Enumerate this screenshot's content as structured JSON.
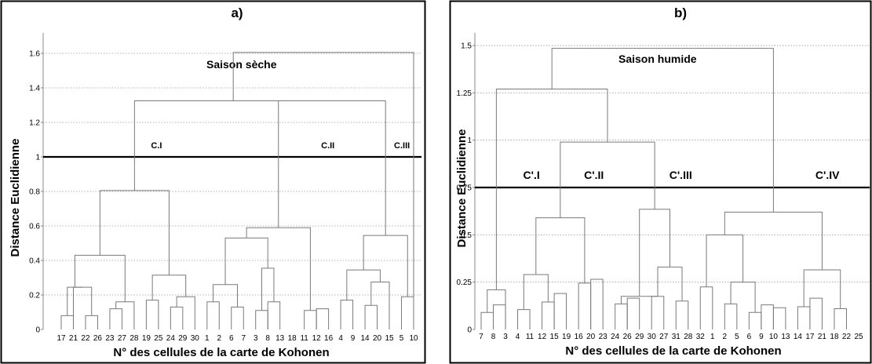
{
  "chart_data": [
    {
      "type": "dendrogram",
      "title": "a)",
      "annotation": "Saison sèche",
      "ylabel": "Distance Euclidienne",
      "xlabel": "N° des cellules de la carte de Kohonen",
      "ylim": [
        0,
        1.7
      ],
      "yticks": [
        "0",
        "0.2",
        "0.4",
        "0.6",
        "0.8",
        "1",
        "1.2",
        "1.4",
        "1.6"
      ],
      "grid": true,
      "threshold": 1.0,
      "leaves": [
        "17",
        "21",
        "22",
        "26",
        "23",
        "27",
        "28",
        "19",
        "25",
        "24",
        "29",
        "30",
        "1",
        "2",
        "6",
        "7",
        "3",
        "8",
        "13",
        "18",
        "11",
        "12",
        "16",
        "4",
        "9",
        "14",
        "20",
        "15",
        "5",
        "10"
      ],
      "cluster_labels": [
        {
          "text": "C.I",
          "leaf_index": 7
        },
        {
          "text": "C.II",
          "leaf_index": 21
        },
        {
          "text": "C.III",
          "leaf_index": 27
        }
      ],
      "merges": [
        [
          0,
          1,
          0.08
        ],
        [
          2,
          3,
          0.08
        ],
        [
          1,
          2,
          0.245
        ],
        [
          0,
          1,
          0.245
        ],
        [
          4,
          5,
          0.12
        ],
        [
          4,
          6,
          0.16
        ],
        [
          0,
          4,
          0.43
        ],
        [
          7,
          8,
          0.17
        ],
        [
          9,
          10,
          0.13
        ],
        [
          9,
          11,
          0.19
        ],
        [
          7,
          9,
          0.315
        ],
        [
          0,
          7,
          0.805
        ],
        [
          12,
          13,
          0.16
        ],
        [
          14,
          15,
          0.13
        ],
        [
          12,
          14,
          0.26
        ],
        [
          16,
          17,
          0.11
        ],
        [
          17,
          18,
          0.16
        ],
        [
          16,
          17,
          0.355
        ],
        [
          12,
          16,
          0.53
        ],
        [
          20,
          21,
          0.11
        ],
        [
          21,
          22,
          0.12
        ],
        [
          12,
          20,
          0.59
        ],
        [
          23,
          24,
          0.17
        ],
        [
          25,
          26,
          0.14
        ],
        [
          25,
          27,
          0.275
        ],
        [
          23,
          25,
          0.345
        ],
        [
          28,
          29,
          0.19
        ],
        [
          23,
          28,
          0.545
        ],
        [
          12,
          23,
          1.325
        ],
        [
          0,
          12,
          1.325
        ],
        [
          0,
          29,
          1.605
        ]
      ]
    },
    {
      "type": "dendrogram",
      "title": "b)",
      "annotation": "Saison humide",
      "ylabel": "Distance Euclidienne",
      "xlabel": "N° des cellules de la carte de Kohonen",
      "ylim": [
        0,
        1.55
      ],
      "yticks": [
        "0",
        "0.25",
        "0.5",
        "0.75",
        "1",
        "1.25",
        "1.5"
      ],
      "grid": true,
      "threshold": 0.75,
      "leaves": [
        "7",
        "8",
        "3",
        "4",
        "11",
        "12",
        "15",
        "19",
        "16",
        "20",
        "23",
        "24",
        "26",
        "29",
        "30",
        "27",
        "31",
        "28",
        "32",
        "1",
        "2",
        "5",
        "6",
        "9",
        "10",
        "13",
        "14",
        "17",
        "21",
        "18",
        "22",
        "25"
      ],
      "cluster_labels": [
        {
          "text": "C'.I",
          "leaf_index": 3
        },
        {
          "text": "C'.II",
          "leaf_index": 8
        },
        {
          "text": "C'.III",
          "leaf_index": 15
        },
        {
          "text": "C'.IV",
          "leaf_index": 27
        }
      ],
      "merges": [
        [
          0,
          1,
          0.09
        ],
        [
          1,
          2,
          0.13
        ],
        [
          0,
          2,
          0.21
        ],
        [
          3,
          4,
          0.105
        ],
        [
          5,
          6,
          0.145
        ],
        [
          6,
          7,
          0.19
        ],
        [
          3,
          5,
          0.29
        ],
        [
          8,
          9,
          0.245
        ],
        [
          9,
          10,
          0.265
        ],
        [
          3,
          8,
          0.59
        ],
        [
          11,
          12,
          0.135
        ],
        [
          12,
          13,
          0.165
        ],
        [
          14,
          15,
          0.175
        ],
        [
          11,
          14,
          0.175
        ],
        [
          16,
          17,
          0.15
        ],
        [
          14,
          16,
          0.33
        ],
        [
          11,
          14,
          0.635
        ],
        [
          3,
          11,
          0.99
        ],
        [
          0,
          3,
          1.27
        ],
        [
          18,
          19,
          0.225
        ],
        [
          20,
          21,
          0.135
        ],
        [
          22,
          23,
          0.09
        ],
        [
          23,
          24,
          0.13
        ],
        [
          24,
          25,
          0.115
        ],
        [
          20,
          22,
          0.25
        ],
        [
          18,
          20,
          0.5
        ],
        [
          26,
          27,
          0.12
        ],
        [
          27,
          28,
          0.165
        ],
        [
          29,
          30,
          0.11
        ],
        [
          26,
          29,
          0.315
        ],
        [
          18,
          26,
          0.62
        ],
        [
          0,
          18,
          1.485
        ]
      ]
    }
  ]
}
